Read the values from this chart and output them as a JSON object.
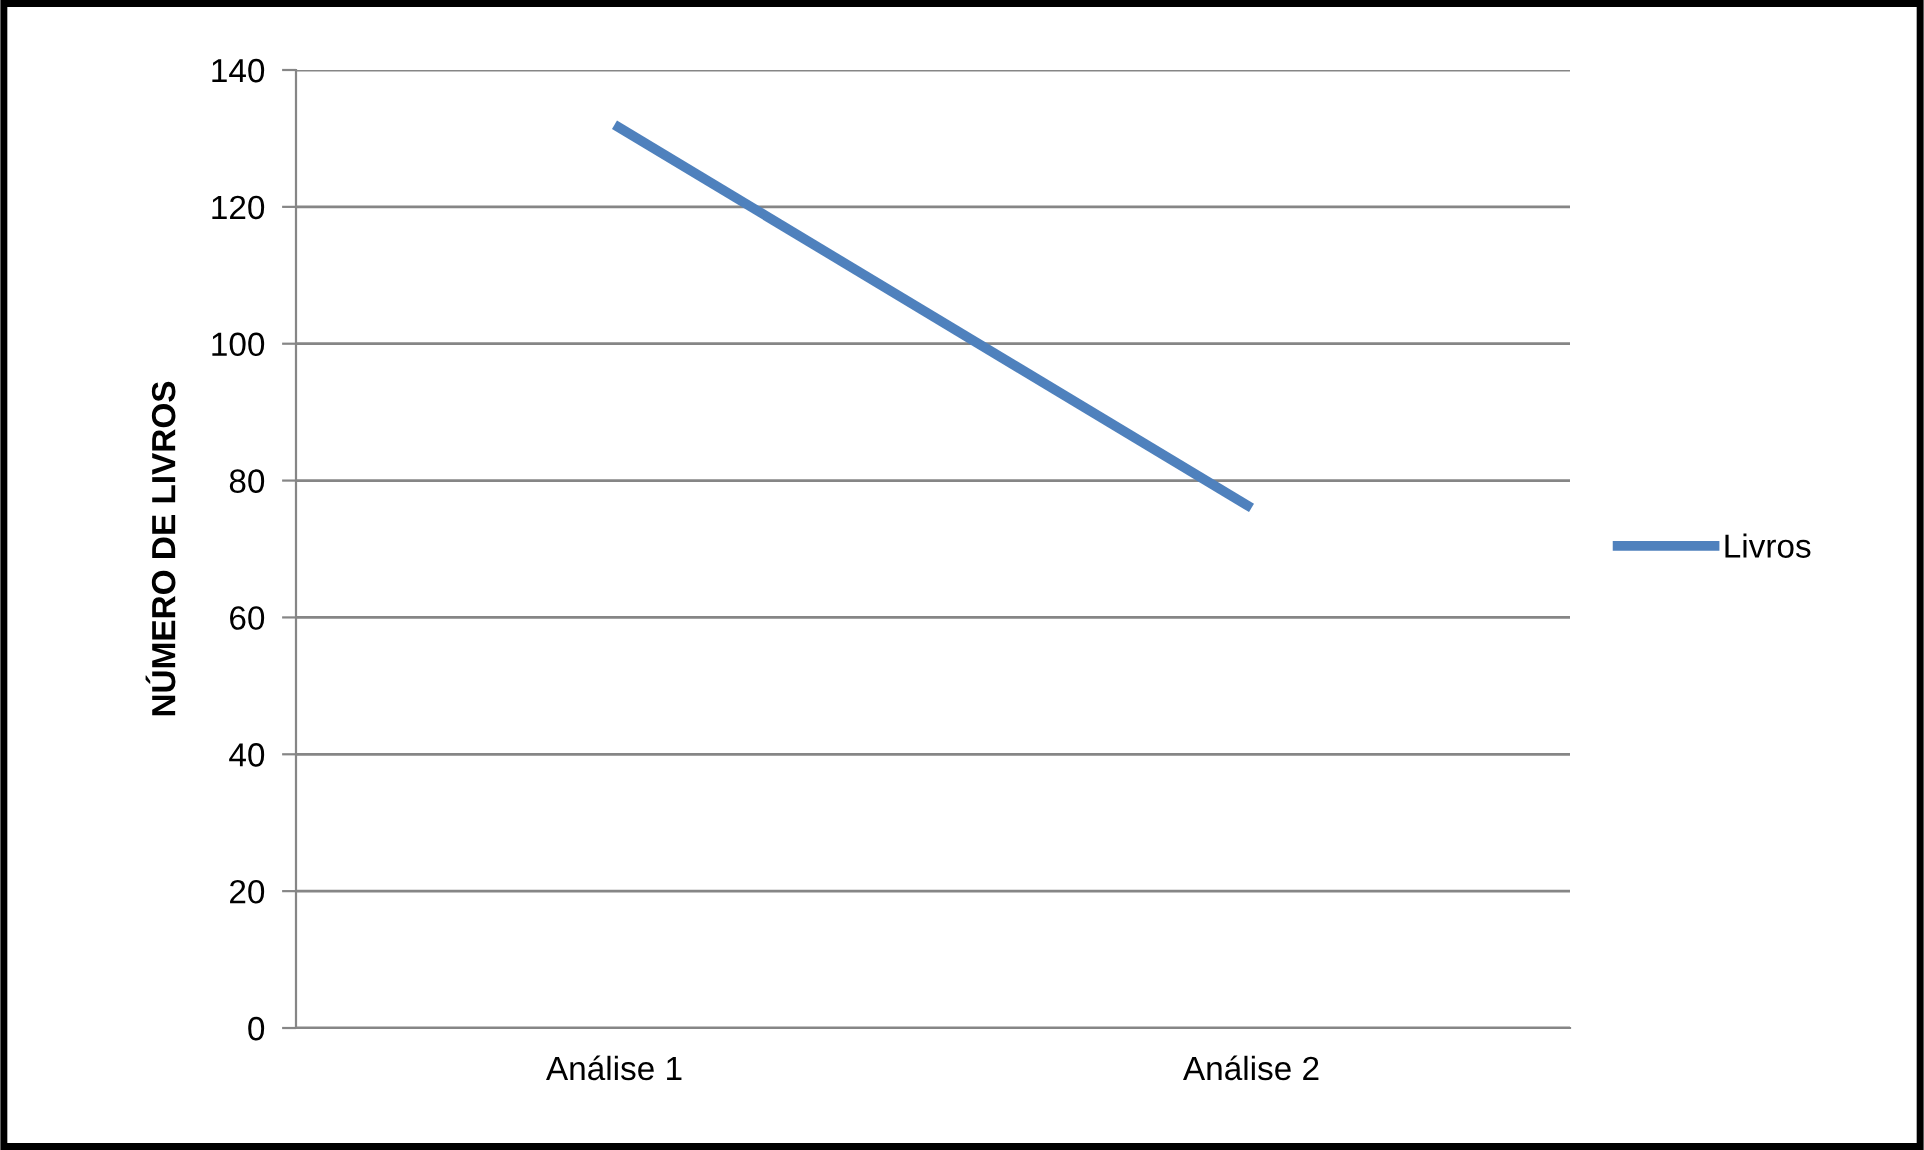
{
  "chart_data": {
    "type": "line",
    "ylabel": "NÚMERO DE LIVROS",
    "categories": [
      "Análise 1",
      "Análise 2"
    ],
    "series": [
      {
        "name": "Livros",
        "color": "#4f81bd",
        "values": [
          132,
          76
        ]
      }
    ],
    "ylim": [
      0,
      140
    ],
    "yticks": [
      0,
      20,
      40,
      60,
      80,
      100,
      120,
      140
    ],
    "grid": "y",
    "legend": "right",
    "marker": "none",
    "line_style": "solid"
  }
}
